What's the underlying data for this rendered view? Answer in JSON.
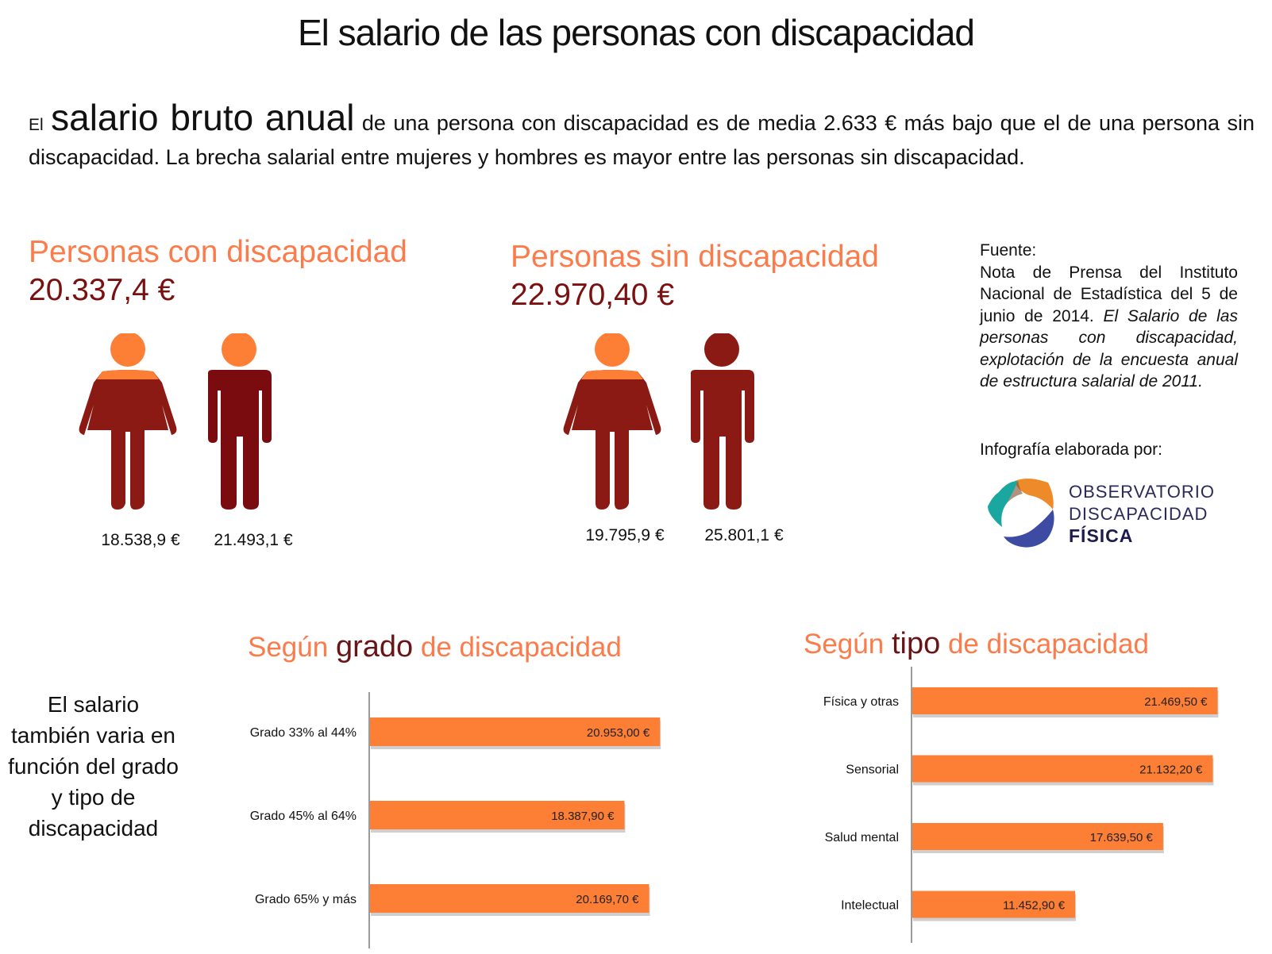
{
  "header": {
    "title": "El salario de las personas con discapacidad"
  },
  "intro": {
    "lead_small": "El",
    "lead_big": "salario bruto anual",
    "text": "de una persona con discapacidad es de media 2.633 € más bajo que el de una persona sin discapacidad. La brecha salarial entre mujeres y hombres es mayor entre las personas sin discapacidad."
  },
  "groups": [
    {
      "title": "Personas con discapacidad",
      "total": "20.337,4 €",
      "women_label": "18.538,9 €",
      "men_label": "21.493,1 €",
      "women_value": 18538.9,
      "men_value": 21493.1
    },
    {
      "title": "Personas sin discapacidad",
      "total": "22.970,40 €",
      "women_label": "19.795,9 €",
      "men_label": "25.801,1 €",
      "women_value": 19795.9,
      "men_value": 25801.1
    }
  ],
  "colors": {
    "orange": "#fd7e35",
    "dark_red": "#8c1a14",
    "maroon": "#7a0b0f",
    "title_orange": "#fb7b4a"
  },
  "source": {
    "label": "Fuente:",
    "text_plain": "Nota de Prensa del Instituto Nacional de Estadística del 5 de junio de 2014.",
    "text_italic": "El Salario de las personas con discapacidad, explotación de la encuesta anual de estructura salarial de 2011.",
    "credit": "Infografía elaborada por:",
    "logo_line1": "OBSERVATORIO",
    "logo_line2": "DISCAPACIDAD",
    "logo_line3": "FÍSICA"
  },
  "side_note": "El salario también varia en función del grado y tipo de discapacidad",
  "chart_data": [
    {
      "type": "bar",
      "orientation": "horizontal",
      "title_parts": [
        "Según",
        "grado",
        "de discapacidad"
      ],
      "categories": [
        "Grado 33% al 44%",
        "Grado 45% al 64%",
        "Grado 65% y más"
      ],
      "values": [
        20953.0,
        18387.9,
        20169.7
      ],
      "value_labels": [
        "20.953,00 €",
        "18.387,90 €",
        "20.169,70 €"
      ],
      "xlabel": "",
      "ylabel": "",
      "xlim": [
        0,
        21000
      ],
      "grid": false
    },
    {
      "type": "bar",
      "orientation": "horizontal",
      "title_parts": [
        "Según",
        "tipo",
        "de discapacidad"
      ],
      "categories": [
        "Física y otras",
        "Sensorial",
        "Salud mental",
        "Intelectual"
      ],
      "values": [
        21469.5,
        21132.2,
        17639.5,
        11452.9
      ],
      "value_labels": [
        "21.469,50 €",
        "21.132,20 €",
        "17.639,50 €",
        "11.452,90 €"
      ],
      "xlabel": "",
      "ylabel": "",
      "xlim": [
        0,
        21500
      ],
      "grid": false
    }
  ]
}
